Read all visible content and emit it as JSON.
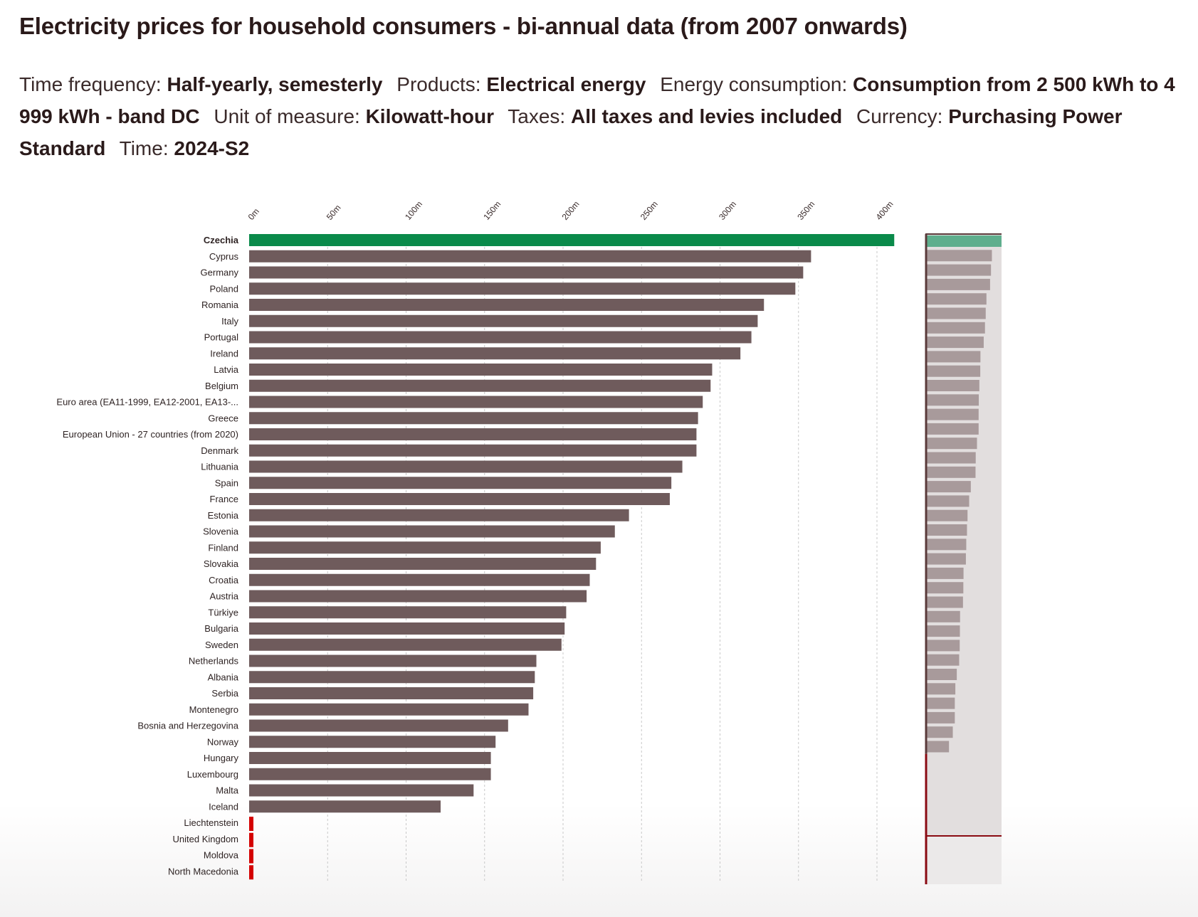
{
  "header": {
    "title": "Electricity prices for household consumers - bi-annual data (from 2007 onwards)",
    "filters": [
      {
        "key": "Time frequency:",
        "value": "Half-yearly, semesterly"
      },
      {
        "key": "Products:",
        "value": "Electrical energy"
      },
      {
        "key": "Energy consumption:",
        "value": "Consumption from 2 500 kWh to 4 999 kWh - band DC"
      },
      {
        "key": "Unit of measure:",
        "value": "Kilowatt-hour"
      },
      {
        "key": "Taxes:",
        "value": "All taxes and levies included"
      },
      {
        "key": "Currency:",
        "value": "Purchasing Power Standard"
      },
      {
        "key": "Time:",
        "value": "2024-S2"
      }
    ]
  },
  "colors": {
    "highlight": "#0a8a4a",
    "bar": "#6f5b5c",
    "missing": "#d40000",
    "grid": "#c8c8c8",
    "minimap_bg": "#e2dede",
    "minimap_bar": "#a89a9b",
    "minimap_highlight": "#5fae8d",
    "minimap_border": "#5a3a3a",
    "minimap_missing_border": "#8a0a12"
  },
  "chart_data": {
    "type": "bar",
    "orientation": "horizontal",
    "title": "Electricity prices for household consumers - bi-annual data (from 2007 onwards)",
    "xlabel": "",
    "ylabel": "",
    "xlim": [
      0,
      400
    ],
    "x_ticks": [
      "0m",
      "50m",
      "100m",
      "150m",
      "200m",
      "250m",
      "300m",
      "350m",
      "400m"
    ],
    "x_tick_values": [
      0,
      50,
      100,
      150,
      200,
      250,
      300,
      350,
      400
    ],
    "grid": true,
    "highlighted": "Czechia",
    "categories": [
      "Czechia",
      "Cyprus",
      "Germany",
      "Poland",
      "Romania",
      "Italy",
      "Portugal",
      "Ireland",
      "Latvia",
      "Belgium",
      "Euro area (EA11-1999, EA12-2001, EA13-...",
      "Greece",
      "European Union - 27 countries (from 2020)",
      "Denmark",
      "Lithuania",
      "Spain",
      "France",
      "Estonia",
      "Slovenia",
      "Finland",
      "Slovakia",
      "Croatia",
      "Austria",
      "Türkiye",
      "Bulgaria",
      "Sweden",
      "Netherlands",
      "Albania",
      "Serbia",
      "Montenegro",
      "Bosnia and Herzegovina",
      "Norway",
      "Hungary",
      "Luxembourg",
      "Malta",
      "Iceland",
      "Liechtenstein",
      "United Kingdom",
      "Moldova",
      "North Macedonia"
    ],
    "values": [
      411,
      358,
      353,
      348,
      328,
      324,
      320,
      313,
      295,
      294,
      289,
      286,
      285,
      285,
      276,
      269,
      268,
      242,
      233,
      224,
      221,
      217,
      215,
      202,
      201,
      199,
      183,
      182,
      181,
      178,
      165,
      157,
      154,
      154,
      143,
      122,
      null,
      null,
      null,
      null
    ],
    "missing_data": [
      "Liechtenstein",
      "United Kingdom",
      "Moldova",
      "North Macedonia"
    ]
  }
}
